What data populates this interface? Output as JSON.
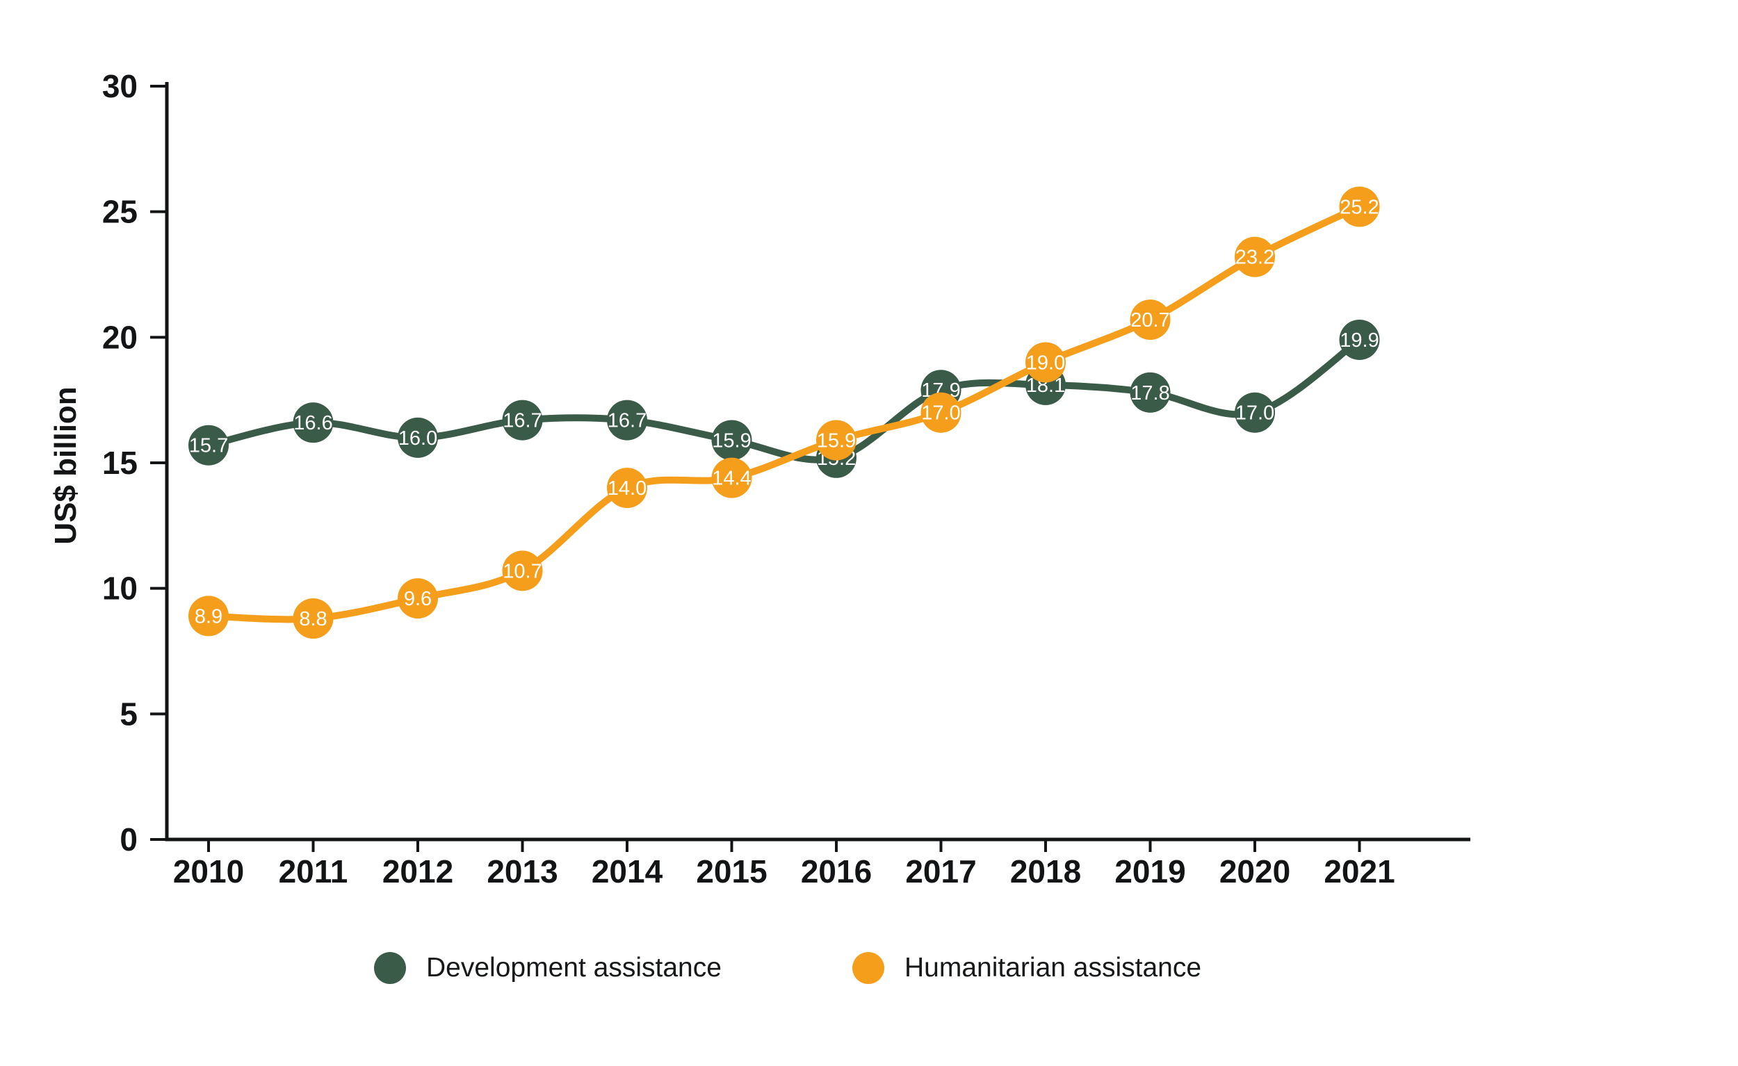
{
  "chart_data": {
    "type": "line",
    "title": "",
    "xlabel": "",
    "ylabel": "US$ billion",
    "categories": [
      "2010",
      "2011",
      "2012",
      "2013",
      "2014",
      "2015",
      "2016",
      "2017",
      "2018",
      "2019",
      "2020",
      "2021"
    ],
    "series": [
      {
        "name": "Development assistance",
        "color": "#3B5B49",
        "values": [
          15.7,
          16.6,
          16.0,
          16.7,
          16.7,
          15.9,
          15.2,
          17.9,
          18.1,
          17.8,
          17.0,
          19.9
        ]
      },
      {
        "name": "Humanitarian assistance",
        "color": "#F49E1C",
        "values": [
          8.9,
          8.8,
          9.6,
          10.7,
          14.0,
          14.4,
          15.9,
          17.0,
          19.0,
          20.7,
          23.2,
          25.2
        ]
      }
    ],
    "ylim": [
      0,
      30
    ],
    "yticks": [
      0,
      5,
      10,
      15,
      20,
      25,
      30
    ],
    "grid": false,
    "legend_position": "bottom",
    "point_labels": true,
    "point_label_decimals": 1
  },
  "colors": {
    "axis": "#121415",
    "tick_label": "#121415",
    "point_label_text": "#ffffff",
    "background": "#ffffff"
  }
}
